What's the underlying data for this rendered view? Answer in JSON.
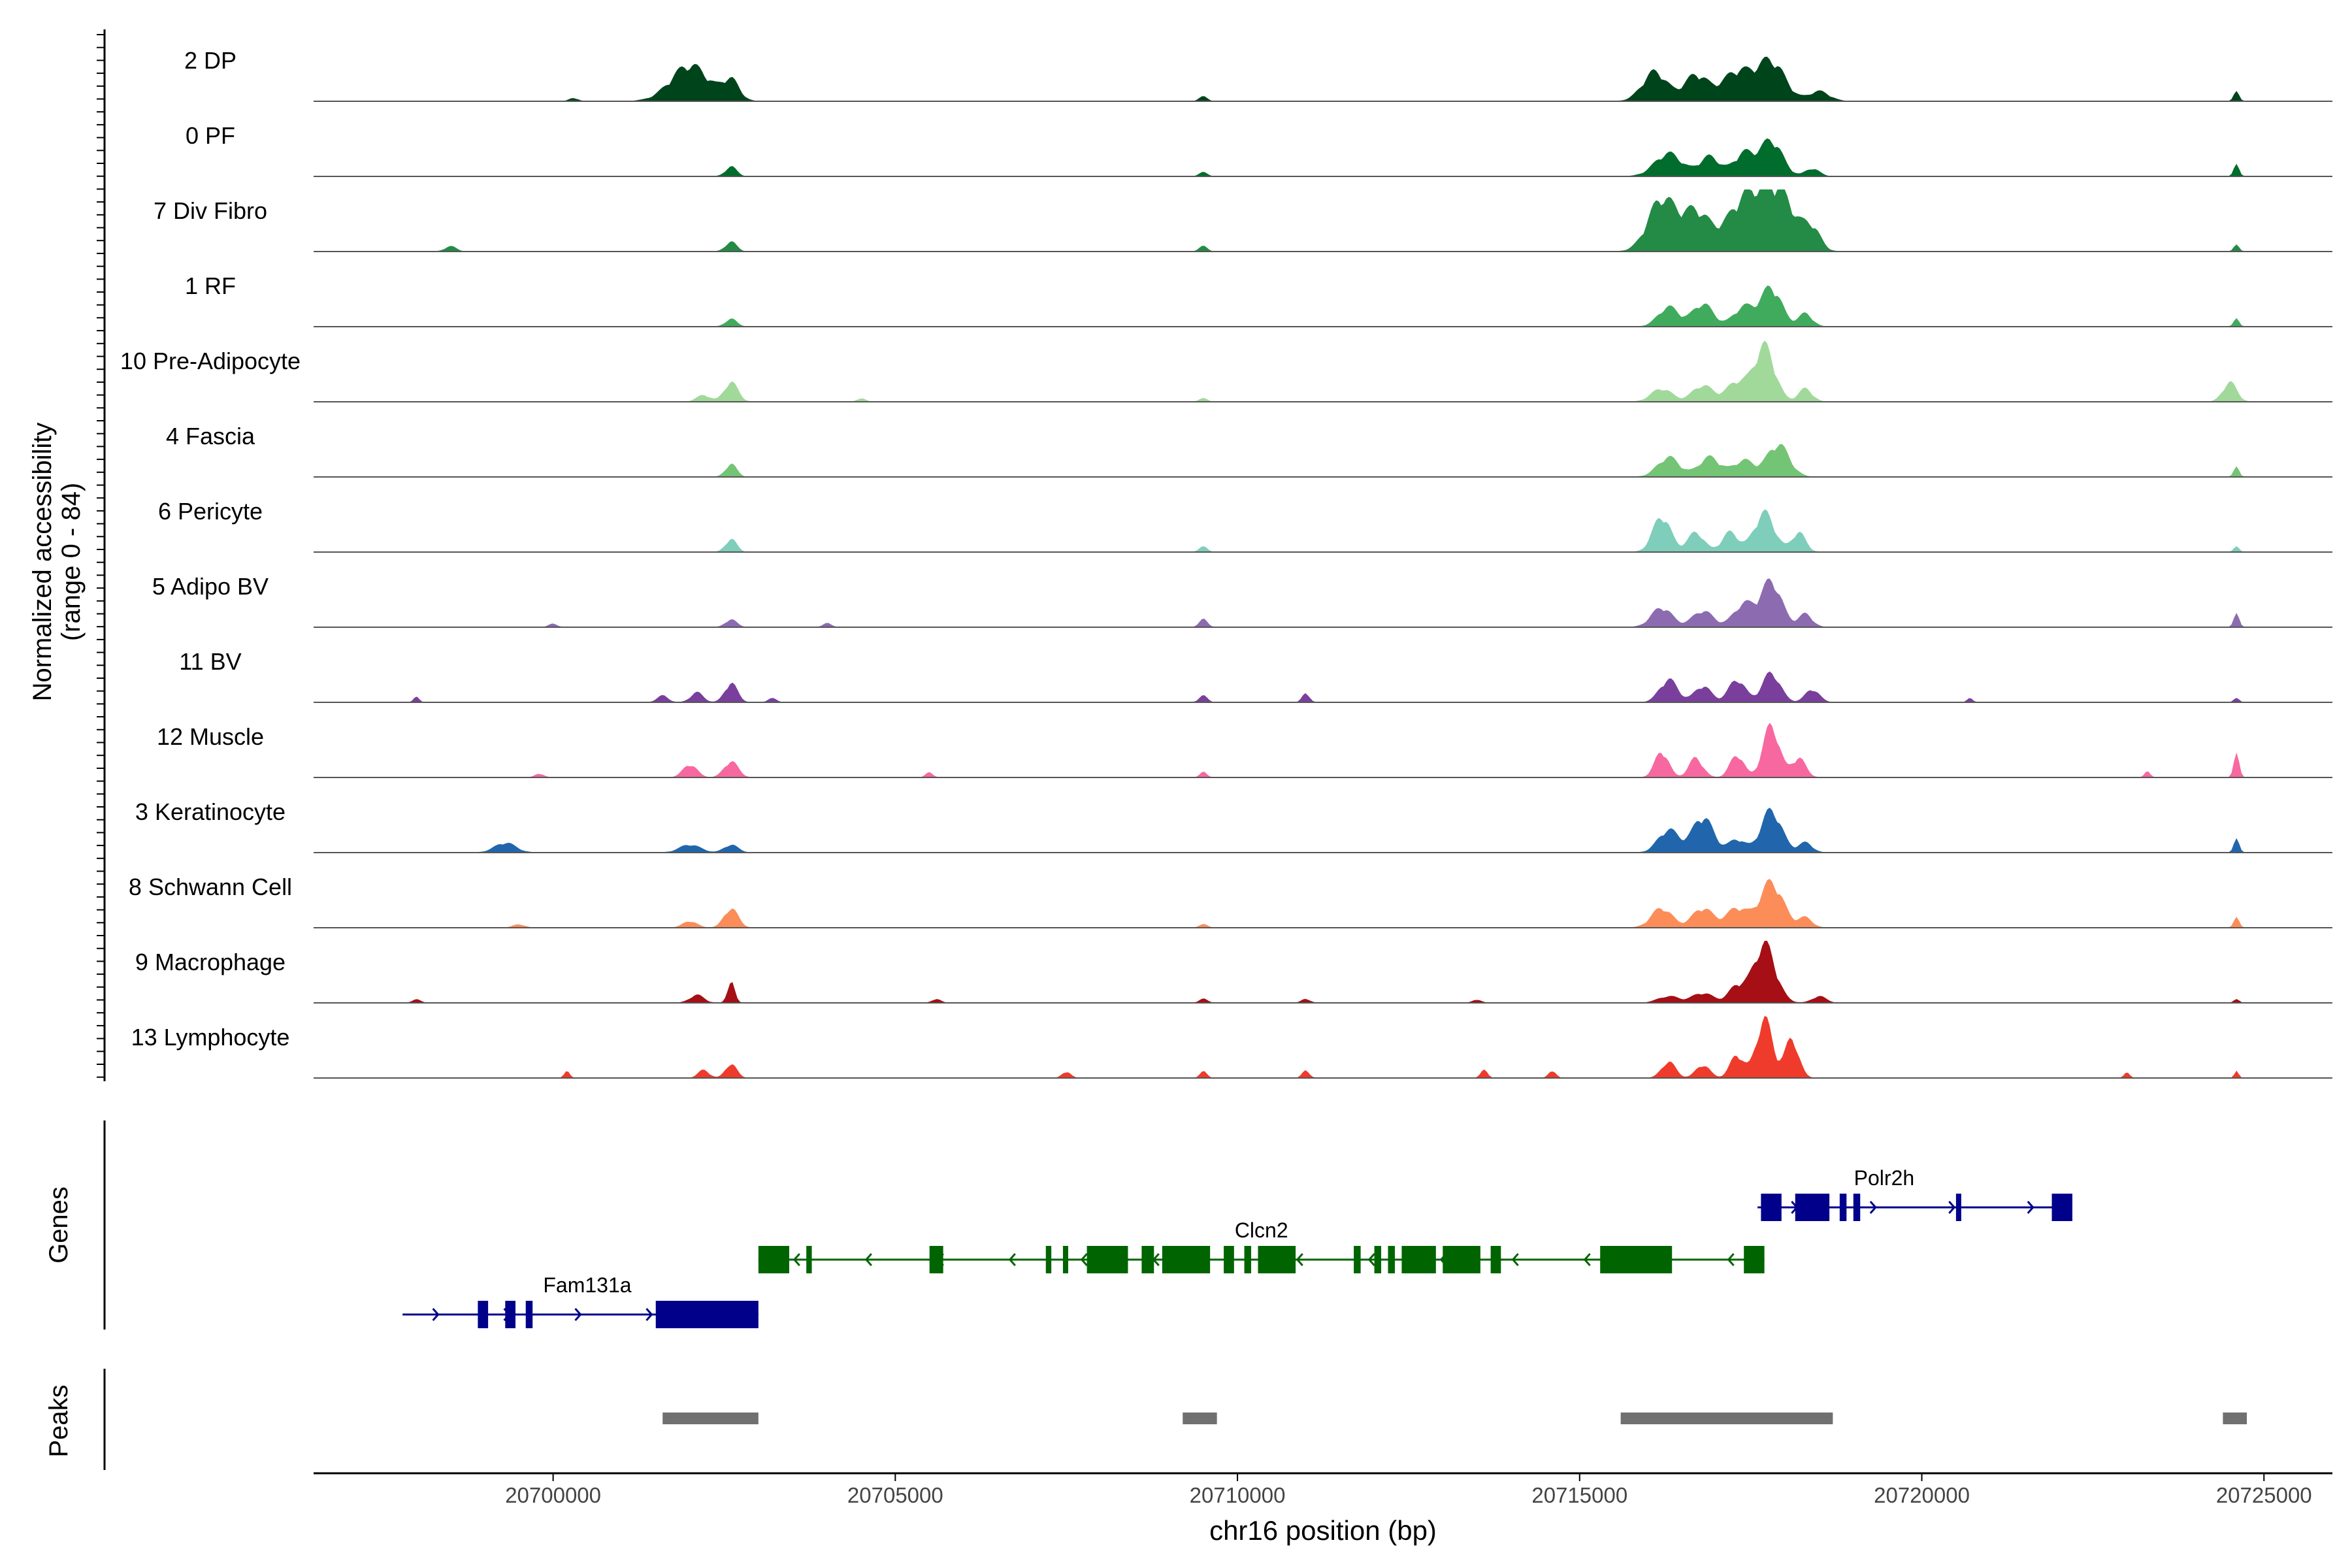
{
  "chart_data": {
    "type": "area",
    "title": "",
    "xlabel": "chr16 position (bp)",
    "ylabel_line1": "Normalized accessibility",
    "ylabel_line2": "(range 0 - 84)",
    "ylim": [
      0,
      84
    ],
    "xlim": [
      20696500,
      20726000
    ],
    "x_ticks": [
      20700000,
      20705000,
      20710000,
      20715000,
      20720000,
      20725000
    ],
    "x_tick_labels": [
      "20700000",
      "20705000",
      "20710000",
      "20715000",
      "20720000",
      "20725000"
    ],
    "tracks": [
      {
        "name": "2 DP",
        "color": "#00441b",
        "peaks": [
          [
            20702000,
            0.55,
            280
          ],
          [
            20702600,
            0.3,
            120
          ],
          [
            20716100,
            0.45,
            180
          ],
          [
            20716700,
            0.4,
            170
          ],
          [
            20717300,
            0.45,
            220
          ],
          [
            20717800,
            0.6,
            200
          ],
          [
            20718500,
            0.15,
            150
          ],
          [
            20724600,
            0.15,
            40
          ],
          [
            20709500,
            0.07,
            60
          ],
          [
            20700300,
            0.05,
            60
          ]
        ]
      },
      {
        "name": "0 PF",
        "color": "#006d2c",
        "peaks": [
          [
            20702600,
            0.15,
            80
          ],
          [
            20716300,
            0.35,
            200
          ],
          [
            20716900,
            0.3,
            150
          ],
          [
            20717400,
            0.35,
            150
          ],
          [
            20717800,
            0.55,
            160
          ],
          [
            20718400,
            0.12,
            100
          ],
          [
            20724600,
            0.18,
            40
          ],
          [
            20709500,
            0.06,
            60
          ]
        ]
      },
      {
        "name": "7 Div Fibro",
        "color": "#238b45",
        "peaks": [
          [
            20702600,
            0.15,
            80
          ],
          [
            20716200,
            0.8,
            200
          ],
          [
            20716700,
            0.6,
            200
          ],
          [
            20717400,
            0.75,
            250
          ],
          [
            20717900,
            0.9,
            250
          ],
          [
            20718400,
            0.3,
            120
          ],
          [
            20698500,
            0.08,
            80
          ],
          [
            20709500,
            0.08,
            60
          ],
          [
            20724600,
            0.1,
            40
          ]
        ]
      },
      {
        "name": "1 RF",
        "color": "#41ab5d",
        "peaks": [
          [
            20702600,
            0.12,
            80
          ],
          [
            20716300,
            0.3,
            150
          ],
          [
            20716800,
            0.35,
            150
          ],
          [
            20717400,
            0.3,
            150
          ],
          [
            20717800,
            0.6,
            150
          ],
          [
            20718300,
            0.2,
            100
          ],
          [
            20724600,
            0.12,
            40
          ]
        ]
      },
      {
        "name": "10 Pre-Adipocyte",
        "color": "#a1d99b",
        "peaks": [
          [
            20702600,
            0.3,
            100
          ],
          [
            20702200,
            0.1,
            100
          ],
          [
            20716200,
            0.2,
            150
          ],
          [
            20716800,
            0.25,
            150
          ],
          [
            20717300,
            0.3,
            150
          ],
          [
            20717700,
            0.85,
            150
          ],
          [
            20718300,
            0.2,
            100
          ],
          [
            20724500,
            0.3,
            100
          ],
          [
            20704500,
            0.05,
            60
          ],
          [
            20709500,
            0.05,
            60
          ]
        ]
      },
      {
        "name": "4 Fascia",
        "color": "#74c476",
        "peaks": [
          [
            20702600,
            0.2,
            80
          ],
          [
            20716300,
            0.3,
            160
          ],
          [
            20716900,
            0.3,
            160
          ],
          [
            20717400,
            0.25,
            150
          ],
          [
            20717900,
            0.5,
            160
          ],
          [
            20724600,
            0.15,
            40
          ]
        ]
      },
      {
        "name": "6 Pericyte",
        "color": "#7fcdbb",
        "peaks": [
          [
            20702600,
            0.2,
            80
          ],
          [
            20716200,
            0.55,
            130
          ],
          [
            20716700,
            0.3,
            120
          ],
          [
            20717200,
            0.3,
            120
          ],
          [
            20717700,
            0.6,
            150
          ],
          [
            20718200,
            0.3,
            100
          ],
          [
            20709500,
            0.08,
            60
          ],
          [
            20724600,
            0.08,
            40
          ]
        ]
      },
      {
        "name": "5 Adipo BV",
        "color": "#8c6bb1",
        "peaks": [
          [
            20702600,
            0.12,
            80
          ],
          [
            20716200,
            0.3,
            150
          ],
          [
            20716800,
            0.25,
            150
          ],
          [
            20717400,
            0.35,
            150
          ],
          [
            20717800,
            0.7,
            150
          ],
          [
            20718300,
            0.2,
            100
          ],
          [
            20709500,
            0.12,
            60
          ],
          [
            20724600,
            0.2,
            40
          ],
          [
            20700000,
            0.05,
            60
          ],
          [
            20704000,
            0.06,
            60
          ]
        ]
      },
      {
        "name": "11 BV",
        "color": "#7a3f9c",
        "peaks": [
          [
            20702600,
            0.3,
            90
          ],
          [
            20702100,
            0.15,
            90
          ],
          [
            20701600,
            0.1,
            80
          ],
          [
            20716300,
            0.35,
            130
          ],
          [
            20716800,
            0.25,
            120
          ],
          [
            20717300,
            0.35,
            120
          ],
          [
            20717800,
            0.45,
            130
          ],
          [
            20718400,
            0.2,
            100
          ],
          [
            20709500,
            0.1,
            60
          ],
          [
            20711000,
            0.15,
            50
          ],
          [
            20703200,
            0.06,
            60
          ],
          [
            20698000,
            0.08,
            40
          ],
          [
            20720700,
            0.06,
            40
          ],
          [
            20724600,
            0.06,
            40
          ]
        ]
      },
      {
        "name": "12 Muscle",
        "color": "#f768a1",
        "peaks": [
          [
            20702000,
            0.2,
            100
          ],
          [
            20702600,
            0.25,
            100
          ],
          [
            20716200,
            0.4,
            100
          ],
          [
            20716700,
            0.3,
            100
          ],
          [
            20717300,
            0.35,
            100
          ],
          [
            20717800,
            0.8,
            120
          ],
          [
            20718200,
            0.3,
            100
          ],
          [
            20724600,
            0.35,
            40
          ],
          [
            20705500,
            0.08,
            50
          ],
          [
            20709500,
            0.08,
            50
          ],
          [
            20723300,
            0.1,
            40
          ],
          [
            20699800,
            0.06,
            60
          ]
        ]
      },
      {
        "name": "3 Keratinocyte",
        "color": "#2166ac",
        "peaks": [
          [
            20699300,
            0.15,
            150
          ],
          [
            20702000,
            0.12,
            150
          ],
          [
            20702600,
            0.12,
            100
          ],
          [
            20716300,
            0.35,
            150
          ],
          [
            20716800,
            0.55,
            150
          ],
          [
            20717300,
            0.2,
            120
          ],
          [
            20717800,
            0.65,
            150
          ],
          [
            20718300,
            0.15,
            100
          ],
          [
            20724600,
            0.2,
            40
          ]
        ]
      },
      {
        "name": "8 Schwann Cell",
        "color": "#fc8d59",
        "peaks": [
          [
            20702600,
            0.3,
            100
          ],
          [
            20702000,
            0.1,
            100
          ],
          [
            20716200,
            0.3,
            150
          ],
          [
            20716800,
            0.3,
            150
          ],
          [
            20717300,
            0.3,
            150
          ],
          [
            20717800,
            0.7,
            170
          ],
          [
            20718300,
            0.15,
            100
          ],
          [
            20724600,
            0.15,
            40
          ],
          [
            20699500,
            0.05,
            80
          ],
          [
            20709500,
            0.05,
            60
          ]
        ]
      },
      {
        "name": "9 Macrophage",
        "color": "#a50f15",
        "peaks": [
          [
            20702600,
            0.35,
            50
          ],
          [
            20702100,
            0.12,
            100
          ],
          [
            20716300,
            0.1,
            150
          ],
          [
            20716800,
            0.15,
            150
          ],
          [
            20717300,
            0.25,
            120
          ],
          [
            20717700,
            0.9,
            160
          ],
          [
            20718500,
            0.1,
            100
          ],
          [
            20705600,
            0.06,
            60
          ],
          [
            20709500,
            0.06,
            60
          ],
          [
            20711000,
            0.06,
            60
          ],
          [
            20713500,
            0.05,
            60
          ],
          [
            20698000,
            0.05,
            60
          ],
          [
            20724600,
            0.05,
            40
          ]
        ]
      },
      {
        "name": "13 Lymphocyte",
        "color": "#ef3b2c",
        "peaks": [
          [
            20702600,
            0.22,
            80
          ],
          [
            20702200,
            0.12,
            80
          ],
          [
            20700200,
            0.1,
            40
          ],
          [
            20716300,
            0.25,
            100
          ],
          [
            20716800,
            0.2,
            100
          ],
          [
            20717300,
            0.35,
            100
          ],
          [
            20717700,
            0.9,
            120
          ],
          [
            20718100,
            0.6,
            100
          ],
          [
            20709500,
            0.1,
            50
          ],
          [
            20711000,
            0.12,
            50
          ],
          [
            20713600,
            0.12,
            50
          ],
          [
            20714600,
            0.12,
            50
          ],
          [
            20707500,
            0.1,
            60
          ],
          [
            20723000,
            0.08,
            40
          ],
          [
            20724600,
            0.1,
            30
          ]
        ]
      }
    ],
    "genes": [
      {
        "name": "Fam131a",
        "strand": "+",
        "color": "#00008b",
        "start": 20697800,
        "end": 20703000,
        "row": 2,
        "exons": [
          [
            20698900,
            20699050
          ],
          [
            20699300,
            20699450
          ],
          [
            20699600,
            20699700
          ],
          [
            20701500,
            20703000
          ]
        ],
        "label_pos": 20700500
      },
      {
        "name": "Clcn2",
        "strand": "-",
        "color": "#006400",
        "start": 20703000,
        "end": 20717700,
        "row": 1,
        "exons": [
          [
            20703000,
            20703450
          ],
          [
            20703700,
            20703780
          ],
          [
            20705500,
            20705700
          ],
          [
            20707200,
            20707280
          ],
          [
            20707450,
            20707500
          ],
          [
            20707800,
            20708400
          ],
          [
            20708600,
            20708780
          ],
          [
            20708900,
            20709600
          ],
          [
            20709800,
            20709950
          ],
          [
            20710100,
            20710200
          ],
          [
            20710300,
            20710850
          ],
          [
            20711700,
            20711800
          ],
          [
            20712000,
            20712100
          ],
          [
            20712200,
            20712300
          ],
          [
            20712400,
            20712900
          ],
          [
            20713000,
            20713550
          ],
          [
            20713700,
            20713850
          ],
          [
            20715300,
            20716350
          ],
          [
            20717400,
            20717700
          ]
        ],
        "label_pos": 20710350
      },
      {
        "name": "Polr2h",
        "strand": "+",
        "color": "#00008b",
        "start": 20717600,
        "end": 20722200,
        "row": 0,
        "exons": [
          [
            20717650,
            20717950
          ],
          [
            20718150,
            20718650
          ],
          [
            20718800,
            20718900
          ],
          [
            20719000,
            20719100
          ],
          [
            20720500,
            20720560
          ],
          [
            20721900,
            20722200
          ]
        ],
        "label_pos": 20719450
      }
    ],
    "peaks_track": [
      [
        20701600,
        20703000
      ],
      [
        20709200,
        20709700
      ],
      [
        20715600,
        20718700
      ],
      [
        20724400,
        20724750
      ]
    ],
    "track_labels": {
      "genes": "Genes",
      "peaks": "Peaks"
    }
  }
}
